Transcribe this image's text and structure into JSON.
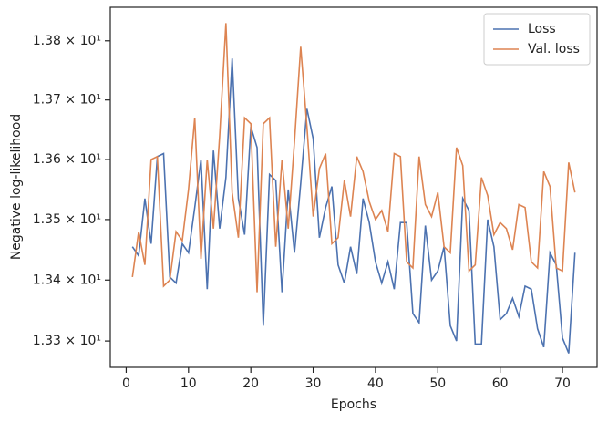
{
  "chart_data": {
    "type": "line",
    "xlabel": "Epochs",
    "ylabel": "Negative log-likelihood",
    "x": [
      1,
      2,
      3,
      4,
      5,
      6,
      7,
      8,
      9,
      10,
      11,
      12,
      13,
      14,
      15,
      16,
      17,
      18,
      19,
      20,
      21,
      22,
      23,
      24,
      25,
      26,
      27,
      28,
      29,
      30,
      31,
      32,
      33,
      34,
      35,
      36,
      37,
      38,
      39,
      40,
      41,
      42,
      43,
      44,
      45,
      46,
      47,
      48,
      49,
      50,
      51,
      52,
      53,
      54,
      55,
      56,
      57,
      58,
      59,
      60,
      61,
      62,
      63,
      64,
      65,
      66,
      67,
      68,
      69,
      70,
      71,
      72
    ],
    "series": [
      {
        "name": "Loss",
        "color": "#4c72b0",
        "values": [
          13.455,
          13.44,
          13.535,
          13.46,
          13.605,
          13.61,
          13.405,
          13.395,
          13.46,
          13.445,
          13.52,
          13.6,
          13.385,
          13.615,
          13.485,
          13.57,
          13.77,
          13.535,
          13.475,
          13.655,
          13.62,
          13.325,
          13.575,
          13.565,
          13.38,
          13.55,
          13.445,
          13.56,
          13.685,
          13.635,
          13.47,
          13.52,
          13.555,
          13.425,
          13.395,
          13.455,
          13.41,
          13.535,
          13.495,
          13.43,
          13.395,
          13.43,
          13.385,
          13.495,
          13.495,
          13.345,
          13.33,
          13.49,
          13.4,
          13.415,
          13.455,
          13.325,
          13.3,
          13.535,
          13.515,
          13.295,
          13.295,
          13.5,
          13.455,
          13.335,
          13.345,
          13.37,
          13.34,
          13.39,
          13.385,
          13.32,
          13.29,
          13.445,
          13.425,
          13.305,
          13.28,
          13.445
        ]
      },
      {
        "name": "Val. loss",
        "color": "#dd8452",
        "values": [
          13.405,
          13.48,
          13.425,
          13.6,
          13.605,
          13.39,
          13.4,
          13.48,
          13.465,
          13.55,
          13.67,
          13.435,
          13.6,
          13.485,
          13.64,
          13.83,
          13.545,
          13.47,
          13.67,
          13.66,
          13.38,
          13.66,
          13.67,
          13.455,
          13.6,
          13.485,
          13.63,
          13.79,
          13.655,
          13.505,
          13.585,
          13.61,
          13.46,
          13.47,
          13.565,
          13.505,
          13.605,
          13.58,
          13.53,
          13.5,
          13.515,
          13.48,
          13.61,
          13.605,
          13.43,
          13.42,
          13.605,
          13.525,
          13.505,
          13.545,
          13.455,
          13.445,
          13.62,
          13.59,
          13.415,
          13.425,
          13.57,
          13.54,
          13.475,
          13.495,
          13.485,
          13.45,
          13.525,
          13.52,
          13.43,
          13.42,
          13.58,
          13.555,
          13.42,
          13.415,
          13.595,
          13.545
        ]
      }
    ],
    "xlim": [
      -2.55,
      75.55
    ],
    "xticks": [
      0,
      10,
      20,
      30,
      40,
      50,
      60,
      70
    ],
    "ylim": [
      13.257,
      13.857
    ],
    "ylog": true,
    "yticks": [
      {
        "value": 13.3,
        "label": "1.33 × 10¹"
      },
      {
        "value": 13.4,
        "label": "1.34 × 10¹"
      },
      {
        "value": 13.5,
        "label": "1.35 × 10¹"
      },
      {
        "value": 13.6,
        "label": "1.36 × 10¹"
      },
      {
        "value": 13.7,
        "label": "1.37 × 10¹"
      },
      {
        "value": 13.8,
        "label": "1.38 × 10¹"
      }
    ],
    "grid": false,
    "legend": "upper right"
  }
}
